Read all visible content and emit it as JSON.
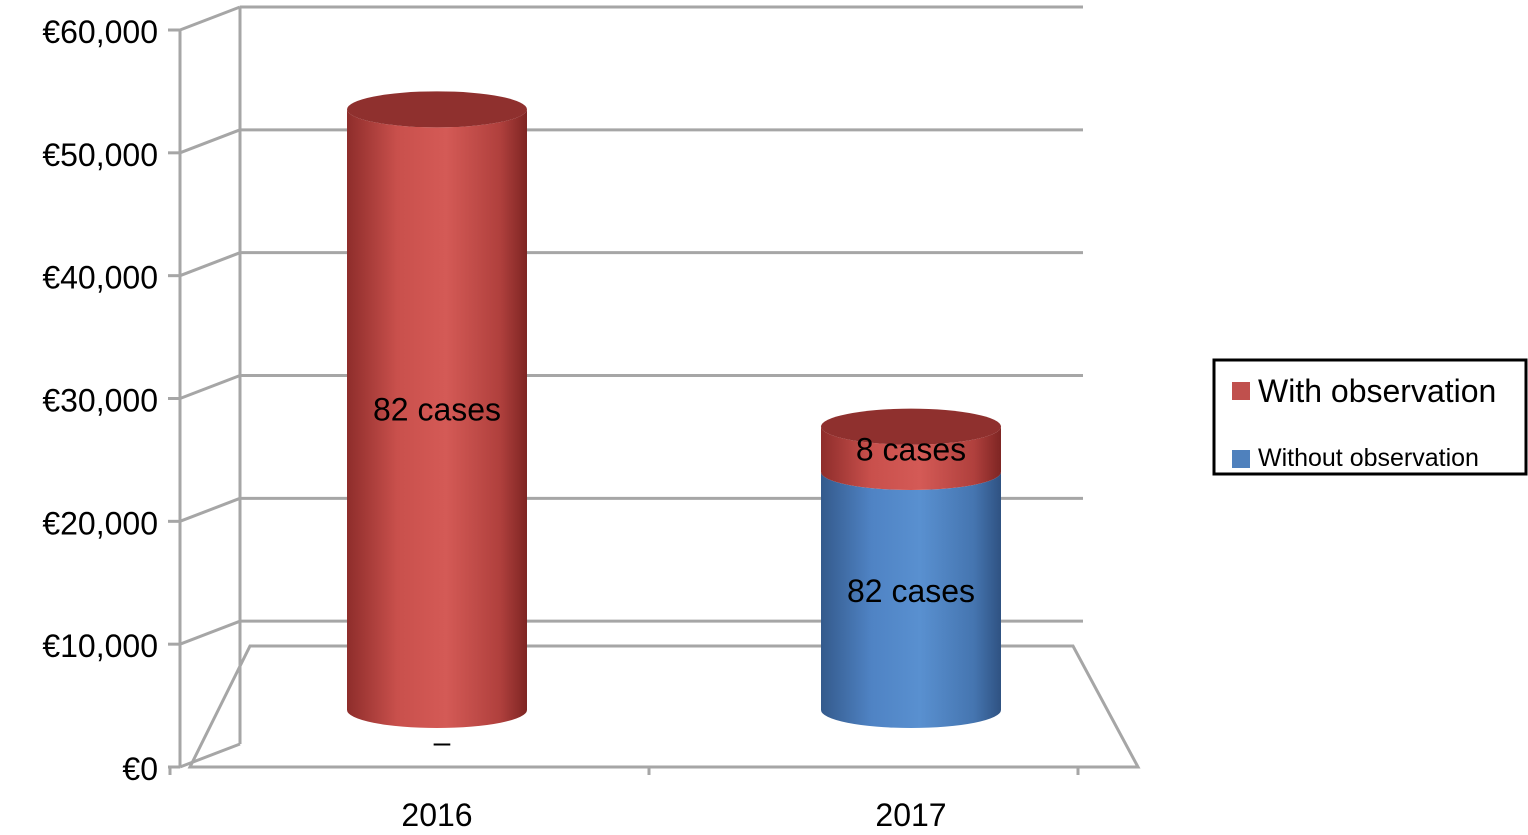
{
  "chart_data": {
    "type": "bar",
    "stacked": true,
    "style": "3d-cylinder",
    "categories": [
      "2016",
      "2017"
    ],
    "series": [
      {
        "name": "Without observation",
        "color": "#4f81bd",
        "values": [
          0,
          21000
        ],
        "labels": [
          "",
          "82 cases"
        ]
      },
      {
        "name": "With observation",
        "color": "#c0504d",
        "values": [
          53000,
          4000
        ],
        "labels": [
          "82 cases",
          "8 cases"
        ]
      }
    ],
    "yaxis": {
      "ylim": [
        0,
        60000
      ],
      "ticks": [
        0,
        10000,
        20000,
        30000,
        40000,
        50000,
        60000
      ],
      "tick_labels": [
        "€0",
        "€10,000",
        "€20,000",
        "€30,000",
        "€40,000",
        "€50,000",
        "€60,000"
      ]
    },
    "extra_marks": [
      {
        "category": "2016",
        "text": "–"
      }
    ],
    "grid": true,
    "legend": {
      "position": "right",
      "entries": [
        {
          "name": "With observation",
          "color": "#c0504d"
        },
        {
          "name": "Without observation",
          "color": "#4f81bd"
        }
      ]
    }
  }
}
